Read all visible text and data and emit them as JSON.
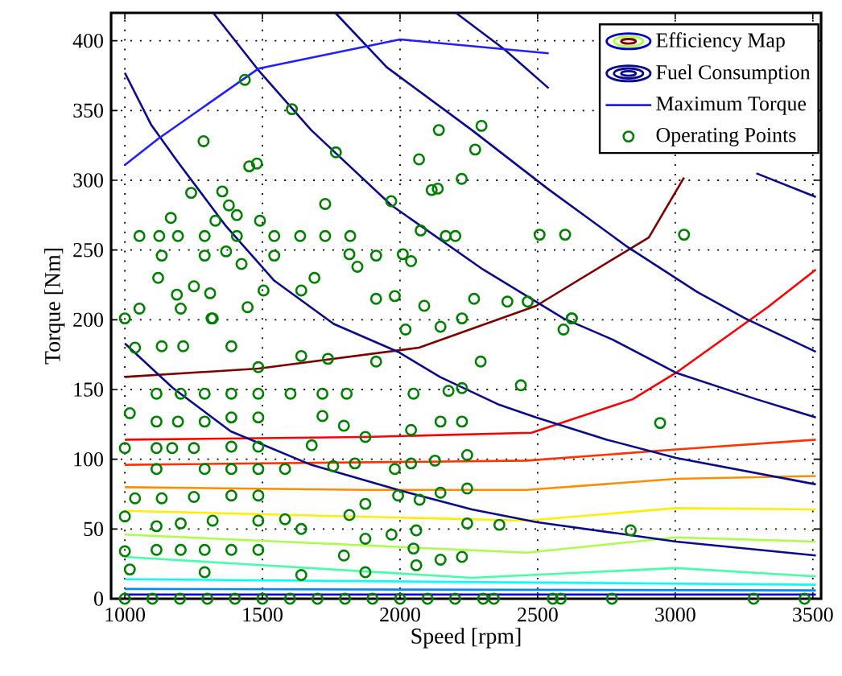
{
  "chart_data": {
    "type": "line",
    "xlabel": "Speed [rpm]",
    "ylabel": "Torque [Nm]",
    "xlim": [
      950,
      3530
    ],
    "ylim": [
      0,
      420
    ],
    "xticks": [
      1000,
      1500,
      2000,
      2500,
      3000,
      3500
    ],
    "yticks": [
      0,
      50,
      100,
      150,
      200,
      250,
      300,
      350,
      400
    ],
    "grid": true,
    "legend": "top right",
    "series": [
      {
        "name": "Efficiency Map",
        "color": "#800000",
        "x": [
          1000,
          1485,
          2069,
          2495,
          2904,
          3032
        ],
        "values": [
          159,
          165,
          180,
          210,
          259,
          302
        ]
      },
      {
        "color": "#ff0000",
        "x": [
          1000,
          1876,
          2478,
          2845,
          3003,
          3336,
          3511
        ],
        "values": [
          114,
          116,
          119,
          143,
          162,
          209,
          236
        ]
      },
      {
        "color": "#ff3300",
        "x": [
          1000,
          2460,
          3003,
          3511
        ],
        "values": [
          96,
          99,
          107,
          114
        ]
      },
      {
        "color": "#ff8c00",
        "x": [
          1000,
          1876,
          2460,
          3003,
          3511
        ],
        "values": [
          80,
          78,
          78,
          86,
          88
        ]
      },
      {
        "color": "#ffee00",
        "x": [
          1000,
          2460,
          3003,
          3511
        ],
        "values": [
          63,
          56,
          65,
          64
        ]
      },
      {
        "color": "#aaff44",
        "x": [
          1000,
          2460,
          3003,
          3511
        ],
        "values": [
          46,
          33,
          44,
          41
        ]
      },
      {
        "color": "#44ffaa",
        "x": [
          1000,
          2261,
          3003,
          3511
        ],
        "values": [
          30,
          15,
          22,
          16
        ]
      },
      {
        "color": "#00ffff",
        "x": [
          1000,
          3511
        ],
        "values": [
          14,
          10
        ]
      },
      {
        "color": "#0088ff",
        "x": [
          1000,
          3511
        ],
        "values": [
          7,
          6
        ]
      },
      {
        "color": "#0000cc",
        "x": [
          1000,
          3511
        ],
        "values": [
          3,
          3
        ]
      },
      {
        "name": "Fuel Consumption",
        "color": "#0a0a8c",
        "x": [
          1000,
          1095,
          1193,
          1368,
          1543,
          1759,
          1993,
          2145,
          2361,
          2495,
          2752,
          3003,
          3511
        ],
        "values": [
          377,
          340,
          313,
          267,
          228,
          197,
          177,
          159,
          139,
          130,
          114,
          101,
          82
        ]
      },
      {
        "color": "#0a0a8c",
        "x": [
          1000,
          1175,
          1385,
          1677,
          1993,
          2261,
          2495,
          3003,
          3511
        ],
        "values": [
          183,
          151,
          120,
          96,
          78,
          64,
          55,
          41,
          31
        ]
      },
      {
        "color": "#0a0a8c",
        "x": [
          1321,
          1485,
          1677,
          1969,
          2302,
          2594,
          2770,
          3003,
          3295,
          3511
        ],
        "values": [
          420,
          379,
          336,
          282,
          236,
          201,
          186,
          162,
          143,
          130
        ]
      },
      {
        "color": "#0a0a8c",
        "x": [
          1765,
          1952,
          2261,
          2536,
          2828,
          3079,
          3254,
          3511
        ],
        "values": [
          420,
          381,
          336,
          294,
          252,
          220,
          201,
          177
        ]
      },
      {
        "color": "#0a0a8c",
        "x": [
          2203,
          2378,
          2540
        ],
        "values": [
          420,
          394,
          366
        ]
      },
      {
        "color": "#0a0a8c",
        "x": [
          3295,
          3511
        ],
        "values": [
          305,
          288
        ]
      },
      {
        "name": "Maximum Torque",
        "color": "#1f1fff",
        "x": [
          1000,
          1123,
          1485,
          2000,
          2540
        ],
        "values": [
          311,
          330,
          380,
          401,
          391
        ]
      },
      {
        "type": "scatter",
        "name": "Operating Points",
        "color": "#008000",
        "marker": "circle",
        "x": [
          1436,
          1607,
          1286,
          1452,
          1480,
          1767,
          2141,
          2296,
          2273,
          2069,
          2224,
          2137,
          2115,
          1968,
          1728,
          1241,
          1354,
          1378,
          1407,
          1167,
          1329,
          1491,
          1053,
          1125,
          1193,
          1290,
          1407,
          1543,
          1637,
          1728,
          1819,
          2075,
          2166,
          2201,
          2507,
          2600,
          3032,
          1134,
          1290,
          1368,
          1543,
          1816,
          1913,
          2010,
          2040,
          1845,
          1121,
          1424,
          1251,
          1310,
          1189,
          1504,
          1641,
          1689,
          1913,
          1981,
          2269,
          2390,
          2464,
          2624,
          1053,
          1203,
          1000,
          1315,
          1446,
          2088,
          1037,
          1134,
          1212,
          1319,
          1387,
          1485,
          1641,
          1738,
          1913,
          2020,
          2147,
          2225,
          2293,
          2439,
          2624,
          2594,
          1115,
          1203,
          1290,
          1387,
          1485,
          1602,
          1718,
          1806,
          2049,
          2176,
          2225,
          1018,
          1115,
          1193,
          1290,
          1387,
          1485,
          1718,
          1796,
          2040,
          2147,
          2225,
          1000,
          1115,
          1172,
          1251,
          1387,
          1485,
          1679,
          1874,
          2244,
          2127,
          2945,
          1115,
          1290,
          1387,
          1485,
          1582,
          1757,
          1836,
          1981,
          2040,
          2244,
          2147,
          1993,
          2071,
          1874,
          1816,
          1037,
          1134,
          1251,
          1387,
          1485,
          1000,
          1115,
          1203,
          1319,
          1485,
          1582,
          1641,
          2361,
          2244,
          2059,
          1969,
          1874,
          2838,
          1000,
          1115,
          1203,
          1290,
          1387,
          1485,
          1796,
          2059,
          2147,
          2225,
          1874,
          2049,
          1018,
          1290,
          1641,
          1000,
          1100,
          1200,
          1300,
          1400,
          1500,
          1600,
          1700,
          1800,
          1900,
          2000,
          2100,
          2200,
          2302,
          2341,
          2555,
          2584,
          2770,
          3285,
          3470
        ],
        "values": [
          372,
          351,
          328,
          310,
          312,
          320,
          336,
          339,
          322,
          315,
          301,
          294,
          293,
          285,
          283,
          291,
          292,
          282,
          275,
          273,
          271,
          271,
          260,
          260,
          260,
          260,
          260,
          260,
          260,
          260,
          260,
          264,
          260,
          260,
          261,
          261,
          261,
          246,
          246,
          249,
          246,
          247,
          246,
          247,
          242,
          238,
          230,
          240,
          224,
          219,
          218,
          221,
          221,
          230,
          215,
          217,
          215,
          213,
          213,
          201,
          208,
          208,
          201,
          201,
          209,
          210,
          180,
          181,
          181,
          201,
          181,
          166,
          174,
          172,
          170,
          193,
          195,
          201,
          170,
          153,
          201,
          193,
          147,
          147,
          147,
          147,
          147,
          147,
          147,
          147,
          147,
          149,
          151,
          133,
          127,
          127,
          127,
          130,
          130,
          131,
          124,
          121,
          127,
          127,
          108,
          108,
          108,
          108,
          109,
          109,
          110,
          116,
          103,
          99,
          126,
          93,
          93,
          93,
          93,
          93,
          95,
          97,
          93,
          97,
          79,
          76,
          74,
          71,
          68,
          60,
          72,
          72,
          73,
          74,
          74,
          59,
          52,
          54,
          56,
          56,
          57,
          50,
          53,
          54,
          49,
          46,
          43,
          49,
          34,
          35,
          35,
          35,
          35,
          35,
          31,
          24,
          28,
          30,
          19,
          36,
          21,
          19,
          17,
          0,
          0,
          0,
          0,
          0,
          0,
          0,
          0,
          0,
          0,
          0,
          0,
          0,
          0,
          0,
          0,
          0,
          0,
          0,
          0
        ]
      }
    ]
  }
}
